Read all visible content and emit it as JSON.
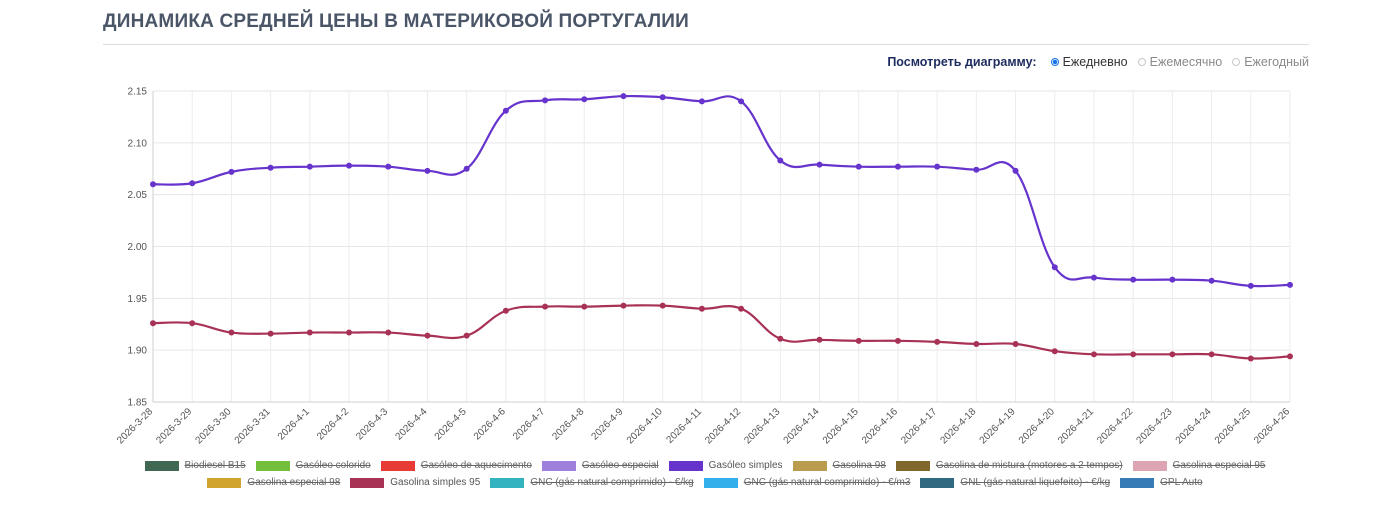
{
  "page": {
    "title": "ДИНАМИКА СРЕДНЕЙ ЦЕНЫ В МАТЕРИКОВОЙ ПОРТУГАЛИИ"
  },
  "view_toggle": {
    "label": "Посмотреть диаграмму:",
    "options": [
      {
        "label": "Ежедневно",
        "selected": true
      },
      {
        "label": "Ежемесячно",
        "selected": false
      },
      {
        "label": "Ежегодный",
        "selected": false
      }
    ]
  },
  "chart_data": {
    "type": "line",
    "title": "",
    "xlabel": "",
    "ylabel": "",
    "grid": true,
    "legend_position": "bottom",
    "ylim": [
      1.85,
      2.15
    ],
    "y_ticks": [
      "1.85",
      "1.90",
      "1.95",
      "2.00",
      "2.05",
      "2.10",
      "2.15"
    ],
    "x": [
      "2026-3-28",
      "2026-3-29",
      "2026-3-30",
      "2026-3-31",
      "2026-4-1",
      "2026-4-2",
      "2026-4-3",
      "2026-4-4",
      "2026-4-5",
      "2026-4-6",
      "2026-4-7",
      "2026-4-8",
      "2026-4-9",
      "2026-4-10",
      "2026-4-11",
      "2026-4-12",
      "2026-4-13",
      "2026-4-14",
      "2026-4-15",
      "2026-4-16",
      "2026-4-17",
      "2026-4-18",
      "2026-4-19",
      "2026-4-20",
      "2026-4-21",
      "2026-4-22",
      "2026-4-23",
      "2026-4-24",
      "2026-4-25",
      "2026-4-26"
    ],
    "series": [
      {
        "name": "Gasóleo simples",
        "color": "#6633cc",
        "values": [
          2.06,
          2.061,
          2.072,
          2.076,
          2.077,
          2.078,
          2.077,
          2.073,
          2.075,
          2.131,
          2.141,
          2.142,
          2.145,
          2.144,
          2.14,
          2.14,
          2.083,
          2.079,
          2.077,
          2.077,
          2.077,
          2.074,
          2.073,
          1.98,
          1.97,
          1.968,
          1.968,
          1.967,
          1.962,
          1.963
        ]
      },
      {
        "name": "Gasolina simples 95",
        "color": "#a83255",
        "values": [
          1.926,
          1.926,
          1.917,
          1.916,
          1.917,
          1.917,
          1.917,
          1.914,
          1.914,
          1.938,
          1.942,
          1.942,
          1.943,
          1.943,
          1.94,
          1.94,
          1.911,
          1.91,
          1.909,
          1.909,
          1.908,
          1.906,
          1.906,
          1.899,
          1.896,
          1.896,
          1.896,
          1.896,
          1.892,
          1.894
        ]
      }
    ]
  },
  "legend": {
    "rows": [
      [
        {
          "label": "Biodiesel B15",
          "color": "#1e4d35",
          "active": false
        },
        {
          "label": "Gasóleo colorido",
          "color": "#5bb31a",
          "active": false
        },
        {
          "label": "Gasóleo de aquecimento",
          "color": "#e31b12",
          "active": false
        },
        {
          "label": "Gasóleo especial",
          "color": "#8f6bd6",
          "active": false
        },
        {
          "label": "Gasóleo simples",
          "color": "#6633cc",
          "active": true
        },
        {
          "label": "Gasolina 98",
          "color": "#b08a2e",
          "active": false
        },
        {
          "label": "Gasolina de mistura (motores a 2 tempos)",
          "color": "#6b4d07",
          "active": false
        },
        {
          "label": "Gasolina especial 95",
          "color": "#d895a8",
          "active": false
        }
      ],
      [
        {
          "label": "Gasolina especial 98",
          "color": "#c8960a",
          "active": false
        },
        {
          "label": "Gasolina simples 95",
          "color": "#a83255",
          "active": true
        },
        {
          "label": "GNC (gás natural comprimido) - €/kg",
          "color": "#10a5b5",
          "active": false
        },
        {
          "label": "GNC (gás natural comprimido) - €/m3",
          "color": "#0fa3e8",
          "active": false
        },
        {
          "label": "GNL (gás natural liquefeito) - €/kg",
          "color": "#0d4f6b",
          "active": false
        },
        {
          "label": "GPL Auto",
          "color": "#1565a8",
          "active": false
        }
      ]
    ]
  }
}
